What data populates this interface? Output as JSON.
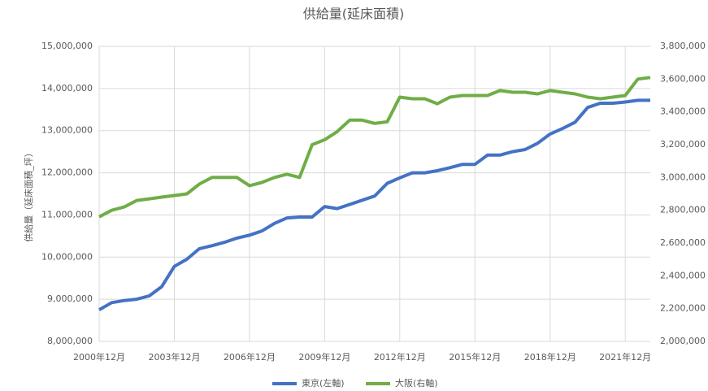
{
  "chart_data": {
    "type": "line",
    "title": "供給量(延床面積)",
    "y_label": "供給量（延床面積_坪）",
    "categories": [
      "2000年12月",
      null,
      null,
      null,
      null,
      null,
      "2003年12月",
      null,
      null,
      null,
      null,
      null,
      "2006年12月",
      null,
      null,
      null,
      null,
      null,
      "2009年12月",
      null,
      null,
      null,
      null,
      null,
      "2012年12月",
      null,
      null,
      null,
      null,
      null,
      "2015年12月",
      null,
      null,
      null,
      null,
      null,
      "2018年12月",
      null,
      null,
      null,
      null,
      null,
      "2021年12月",
      null,
      null
    ],
    "series": [
      {
        "name": "東京(左軸)",
        "color": "#4472c4",
        "axis": "y",
        "values": [
          8750000,
          8920000,
          8970000,
          9000000,
          9080000,
          9300000,
          9780000,
          9950000,
          10200000,
          10270000,
          10350000,
          10450000,
          10520000,
          10620000,
          10800000,
          10930000,
          10950000,
          10950000,
          11200000,
          11150000,
          11250000,
          11350000,
          11450000,
          11750000,
          11880000,
          12000000,
          12000000,
          12050000,
          12120000,
          12200000,
          12200000,
          12420000,
          12420000,
          12500000,
          12550000,
          12700000,
          12920000,
          13050000,
          13200000,
          13550000,
          13650000,
          13650000,
          13680000,
          13720000,
          13720000
        ]
      },
      {
        "name": "大阪(右軸)",
        "color": "#70ad47",
        "axis": "y2",
        "values": [
          2760000,
          2800000,
          2820000,
          2860000,
          2870000,
          2880000,
          2890000,
          2900000,
          2960000,
          3000000,
          3000000,
          3000000,
          2950000,
          2970000,
          3000000,
          3020000,
          3000000,
          3200000,
          3230000,
          3280000,
          3350000,
          3350000,
          3330000,
          3340000,
          3490000,
          3480000,
          3480000,
          3450000,
          3490000,
          3500000,
          3500000,
          3500000,
          3530000,
          3520000,
          3520000,
          3510000,
          3530000,
          3520000,
          3510000,
          3490000,
          3480000,
          3490000,
          3500000,
          3600000,
          3610000
        ]
      }
    ],
    "ylim": [
      8000000,
      15000000
    ],
    "yticks": [
      {
        "value": 8000000,
        "label": "8,000,000"
      },
      {
        "value": 9000000,
        "label": "9,000,000"
      },
      {
        "value": 10000000,
        "label": "10,000,000"
      },
      {
        "value": 11000000,
        "label": "11,000,000"
      },
      {
        "value": 12000000,
        "label": "12,000,000"
      },
      {
        "value": 13000000,
        "label": "13,000,000"
      },
      {
        "value": 14000000,
        "label": "14,000,000"
      },
      {
        "value": 15000000,
        "label": "15,000,000"
      }
    ],
    "y2lim": [
      2000000,
      3800000
    ],
    "y2ticks": [
      {
        "value": 2000000,
        "label": "2,000,000"
      },
      {
        "value": 2200000,
        "label": "2,200,000"
      },
      {
        "value": 2400000,
        "label": "2,400,000"
      },
      {
        "value": 2600000,
        "label": "2,600,000"
      },
      {
        "value": 2800000,
        "label": "2,800,000"
      },
      {
        "value": 3000000,
        "label": "3,000,000"
      },
      {
        "value": 3200000,
        "label": "3,200,000"
      },
      {
        "value": 3400000,
        "label": "3,400,000"
      },
      {
        "value": 3600000,
        "label": "3,600,000"
      },
      {
        "value": 3800000,
        "label": "3,800,000"
      }
    ],
    "grid": true,
    "legend": "bottom"
  }
}
